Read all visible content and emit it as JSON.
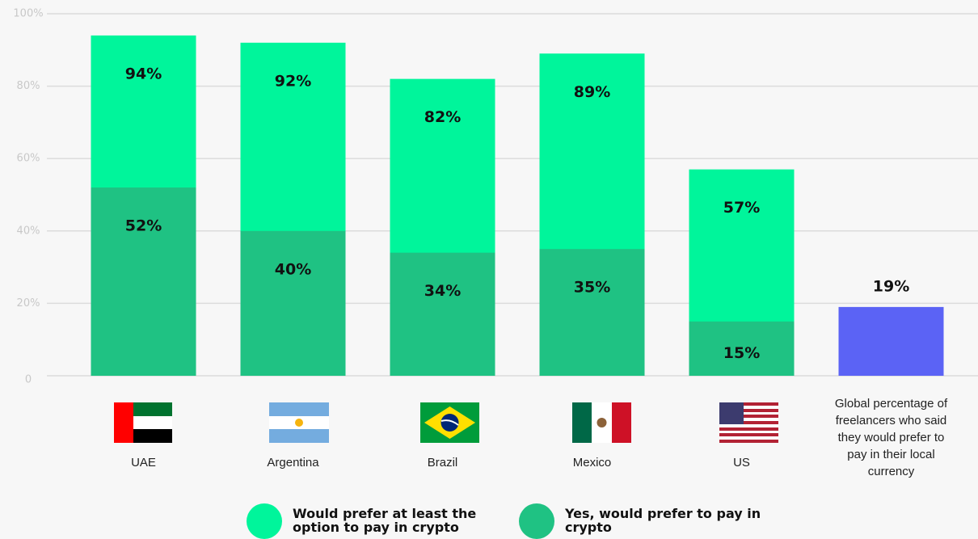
{
  "chart_data": {
    "type": "bar",
    "categories": [
      "UAE",
      "Argentina",
      "Brazil",
      "Mexico",
      "US",
      "Global percentage of freelancers who said they would prefer to pay in their local currency"
    ],
    "series": [
      {
        "name": "Would prefer at least the option to pay in crypto",
        "color": "#00f59b",
        "values": [
          94,
          92,
          82,
          89,
          57,
          null
        ],
        "value_labels": [
          "94%",
          "92%",
          "82%",
          "89%",
          "57%",
          null
        ]
      },
      {
        "name": "Yes, would prefer to pay in crypto",
        "color": "#1fc283",
        "values": [
          52,
          40,
          34,
          35,
          15,
          null
        ],
        "value_labels": [
          "52%",
          "40%",
          "34%",
          "35%",
          "15%",
          null
        ]
      },
      {
        "color": "#5b63f5",
        "values": [
          null,
          null,
          null,
          null,
          null,
          19
        ],
        "value_labels": [
          null,
          null,
          null,
          null,
          null,
          "19%"
        ]
      }
    ],
    "ylim": [
      0,
      100
    ],
    "yticks": [
      0,
      {
        "value": 20,
        "label": "20%"
      },
      {
        "value": 40,
        "label": "40%"
      },
      {
        "value": 60,
        "label": "60%"
      },
      {
        "value": 80,
        "label": "80%"
      },
      {
        "value": 100,
        "label": "100%"
      }
    ],
    "grid": true
  }
}
